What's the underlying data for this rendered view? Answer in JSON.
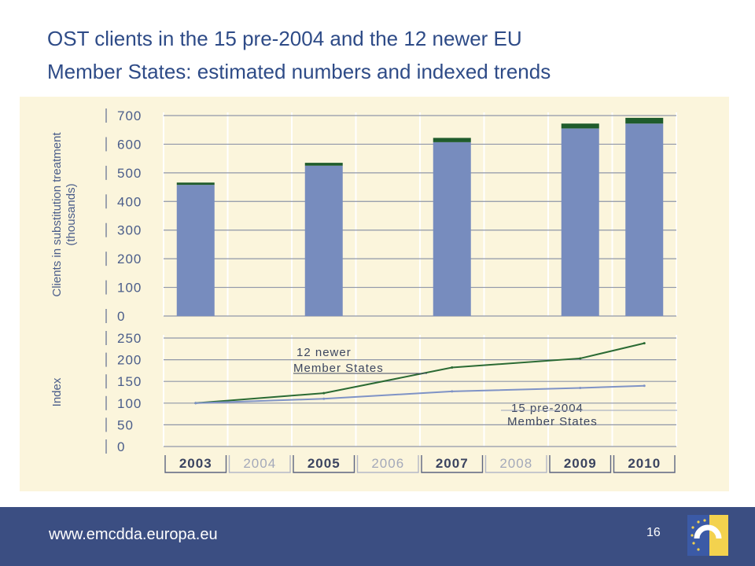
{
  "title": {
    "line1": "OST clients in the 15 pre-2004 and the 12 newer EU",
    "line2": "Member States: estimated numbers and indexed trends"
  },
  "footer": {
    "url": "www.emcdda.europa.eu",
    "page_number": "16"
  },
  "colors": {
    "panel_bg": "#fbf5dc",
    "bar_pre2004": "#778cbe",
    "bar_newer": "#1f5c2c",
    "line_newer": "#2a6a33",
    "line_pre2004": "#7f93c6",
    "axis_text": "#4a5d8a",
    "title": "#2e4b87",
    "footer_bg": "#3b4e82"
  },
  "chart_data": [
    {
      "type": "bar",
      "stacked": true,
      "title": "",
      "ylabel": "Clients in substitution treatment (thousands)",
      "ylim": [
        0,
        700
      ],
      "yticks": [
        0,
        100,
        200,
        300,
        400,
        500,
        600,
        700
      ],
      "categories": [
        "2003",
        "2004",
        "2005",
        "2006",
        "2007",
        "2008",
        "2009",
        "2010"
      ],
      "series": [
        {
          "name": "",
          "color": "#778cbe",
          "values": [
            458,
            null,
            525,
            null,
            607,
            null,
            655,
            672
          ]
        },
        {
          "name": "",
          "color": "#1f5c2c",
          "values": [
            8,
            null,
            10,
            null,
            15,
            null,
            17,
            20
          ]
        }
      ],
      "grid": true
    },
    {
      "type": "line",
      "title": "",
      "ylabel": "Index",
      "ylim": [
        0,
        250
      ],
      "yticks": [
        0,
        50,
        100,
        150,
        200,
        250
      ],
      "x": [
        "2003",
        "2004",
        "2005",
        "2006",
        "2007",
        "2008",
        "2009",
        "2010"
      ],
      "xticks_bold": [
        "2003",
        "2005",
        "2007",
        "2009",
        "2010"
      ],
      "series": [
        {
          "name": "12 newer Member States",
          "color": "#2a6a33",
          "x": [
            "2003",
            "2005",
            "2007",
            "2009",
            "2010"
          ],
          "values": [
            100,
            123,
            182,
            203,
            238
          ]
        },
        {
          "name": "15 pre-2004 Member States",
          "color": "#7f93c6",
          "x": [
            "2003",
            "2005",
            "2007",
            "2009",
            "2010"
          ],
          "values": [
            100,
            110,
            127,
            135,
            140
          ]
        }
      ],
      "annotations": {
        "newer": [
          "12 newer",
          "Member States"
        ],
        "pre2004": [
          "15 pre-2004",
          "Member States"
        ]
      },
      "grid": true
    }
  ]
}
